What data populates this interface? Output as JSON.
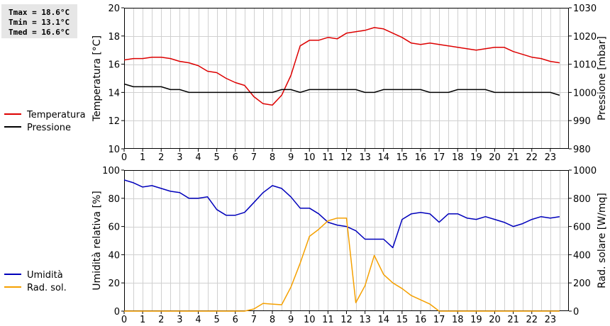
{
  "stats": {
    "tmax": "Tmax = 18.6°C",
    "tmin": "Tmin = 13.1°C",
    "tmed": "Tmed = 16.6°C"
  },
  "colors": {
    "temperature": "#dd0000",
    "pressure": "#000000",
    "humidity": "#0000bb",
    "radiation": "#f5a000",
    "grid": "#d0d0d0"
  },
  "chart_data": [
    {
      "type": "line",
      "xlim": [
        0,
        24
      ],
      "x_ticks": [
        "0",
        "1",
        "2",
        "3",
        "4",
        "5",
        "6",
        "7",
        "8",
        "9",
        "10",
        "11",
        "12",
        "13",
        "14",
        "15",
        "16",
        "17",
        "18",
        "19",
        "20",
        "21",
        "22",
        "23"
      ],
      "ylabel_left": "Temperatura [°C]",
      "ylabel_right": "Pressione [mbar]",
      "ylim_left": [
        10,
        20
      ],
      "ylim_right": [
        980,
        1030
      ],
      "y_ticks_left": [
        "10",
        "12",
        "14",
        "16",
        "18",
        "20"
      ],
      "y_ticks_right": [
        "980",
        "990",
        "1000",
        "1010",
        "1020",
        "1030"
      ],
      "grid": true,
      "legend_position": "left",
      "series": [
        {
          "name": "Temperatura",
          "axis": "left",
          "color": "#dd0000",
          "x": [
            0,
            0.5,
            1,
            1.5,
            2,
            2.5,
            3,
            3.5,
            4,
            4.5,
            5,
            5.5,
            6,
            6.5,
            7,
            7.5,
            8,
            8.5,
            9,
            9.5,
            10,
            10.5,
            11,
            11.5,
            12,
            12.5,
            13,
            13.5,
            14,
            14.5,
            15,
            15.5,
            16,
            16.5,
            17,
            17.5,
            18,
            18.5,
            19,
            19.5,
            20,
            20.5,
            21,
            21.5,
            22,
            22.5,
            23,
            23.5
          ],
          "y": [
            16.3,
            16.4,
            16.4,
            16.5,
            16.5,
            16.4,
            16.2,
            16.1,
            15.9,
            15.5,
            15.4,
            15.0,
            14.7,
            14.5,
            13.7,
            13.2,
            13.1,
            13.8,
            15.2,
            17.3,
            17.7,
            17.7,
            17.9,
            17.8,
            18.2,
            18.3,
            18.4,
            18.6,
            18.5,
            18.2,
            17.9,
            17.5,
            17.4,
            17.5,
            17.4,
            17.3,
            17.2,
            17.1,
            17.0,
            17.1,
            17.2,
            17.2,
            16.9,
            16.7,
            16.5,
            16.4,
            16.2,
            16.1
          ]
        },
        {
          "name": "Pressione",
          "axis": "right",
          "color": "#000000",
          "x": [
            0,
            0.5,
            1,
            1.5,
            2,
            2.5,
            3,
            3.5,
            4,
            4.5,
            5,
            5.5,
            6,
            6.5,
            7,
            7.5,
            8,
            8.5,
            9,
            9.5,
            10,
            10.5,
            11,
            11.5,
            12,
            12.5,
            13,
            13.5,
            14,
            14.5,
            15,
            15.5,
            16,
            16.5,
            17,
            17.5,
            18,
            18.5,
            19,
            19.5,
            20,
            20.5,
            21,
            21.5,
            22,
            22.5,
            23,
            23.5
          ],
          "y": [
            1003,
            1002,
            1002,
            1002,
            1002,
            1001,
            1001,
            1000,
            1000,
            1000,
            1000,
            1000,
            1000,
            1000,
            1000,
            1000,
            1000,
            1001,
            1001,
            1000,
            1001,
            1001,
            1001,
            1001,
            1001,
            1001,
            1000,
            1000,
            1001,
            1001,
            1001,
            1001,
            1001,
            1000,
            1000,
            1000,
            1001,
            1001,
            1001,
            1001,
            1000,
            1000,
            1000,
            1000,
            1000,
            1000,
            1000,
            999
          ]
        }
      ]
    },
    {
      "type": "line",
      "xlim": [
        0,
        24
      ],
      "x_ticks": [
        "0",
        "1",
        "2",
        "3",
        "4",
        "5",
        "6",
        "7",
        "8",
        "9",
        "10",
        "11",
        "12",
        "13",
        "14",
        "15",
        "16",
        "17",
        "18",
        "19",
        "20",
        "21",
        "22",
        "23"
      ],
      "ylabel_left": "Umidità relativa [%]",
      "ylabel_right": "Rad. solare [W/mq]",
      "ylim_left": [
        0,
        100
      ],
      "ylim_right": [
        0,
        1000
      ],
      "y_ticks_left": [
        "0",
        "20",
        "40",
        "60",
        "80",
        "100"
      ],
      "y_ticks_right": [
        "0",
        "200",
        "400",
        "600",
        "800",
        "1000"
      ],
      "grid": true,
      "legend_position": "left",
      "series": [
        {
          "name": "Umidità",
          "axis": "left",
          "color": "#0000bb",
          "x": [
            0,
            0.5,
            1,
            1.5,
            2,
            2.5,
            3,
            3.5,
            4,
            4.5,
            5,
            5.5,
            6,
            6.5,
            7,
            7.5,
            8,
            8.5,
            9,
            9.5,
            10,
            10.5,
            11,
            11.5,
            12,
            12.5,
            13,
            13.5,
            14,
            14.5,
            15,
            15.5,
            16,
            16.5,
            17,
            17.5,
            18,
            18.5,
            19,
            19.5,
            20,
            20.5,
            21,
            21.5,
            22,
            22.5,
            23,
            23.5
          ],
          "y": [
            93,
            91,
            88,
            89,
            87,
            85,
            84,
            80,
            80,
            81,
            72,
            68,
            68,
            70,
            77,
            84,
            89,
            87,
            81,
            73,
            73,
            69,
            63,
            61,
            60,
            57,
            51,
            51,
            51,
            45,
            65,
            69,
            70,
            69,
            63,
            69,
            69,
            66,
            65,
            67,
            65,
            63,
            60,
            62,
            65,
            67,
            66,
            67
          ]
        },
        {
          "name": "Rad. sol.",
          "axis": "right",
          "color": "#f5a000",
          "x": [
            0,
            0.5,
            1,
            1.5,
            2,
            2.5,
            3,
            3.5,
            4,
            4.5,
            5,
            5.5,
            6,
            6.5,
            7,
            7.5,
            8,
            8.5,
            9,
            9.5,
            10,
            10.5,
            11,
            11.5,
            12,
            12.5,
            13,
            13.5,
            14,
            14.5,
            15,
            15.5,
            16,
            16.5,
            17,
            17.5,
            18,
            18.5,
            19,
            19.5,
            20,
            20.5,
            21,
            21.5,
            22,
            22.5,
            23,
            23.5
          ],
          "y": [
            0,
            0,
            0,
            0,
            0,
            0,
            0,
            0,
            0,
            0,
            0,
            0,
            0,
            0,
            15,
            55,
            50,
            45,
            170,
            340,
            530,
            580,
            640,
            660,
            660,
            60,
            180,
            395,
            260,
            200,
            160,
            110,
            80,
            50,
            0,
            0,
            0,
            0,
            0,
            0,
            0,
            0,
            0,
            0,
            0,
            0,
            0,
            0
          ]
        }
      ]
    }
  ]
}
